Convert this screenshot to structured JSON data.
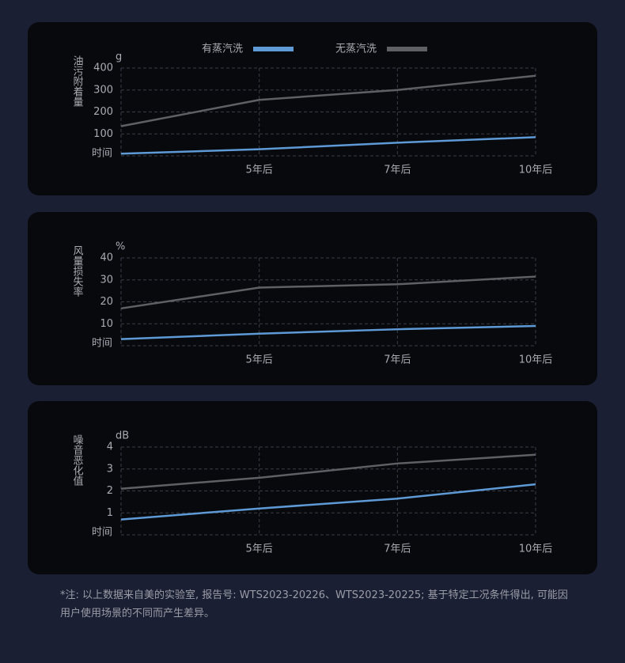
{
  "chart_data": [
    {
      "type": "line",
      "y_label": "油污附着量",
      "y_unit": "g",
      "x_label": "时间",
      "categories": [
        null,
        "5年后",
        "7年后",
        "10年后"
      ],
      "ylim": [
        0,
        400
      ],
      "yticks": [
        100,
        200,
        300,
        400
      ],
      "grid": true,
      "series": [
        {
          "name": "有蒸汽洗",
          "color": "#5e9ad6",
          "values": [
            10,
            30,
            60,
            85
          ]
        },
        {
          "name": "无蒸汽洗",
          "color": "#5f6064",
          "values": [
            135,
            255,
            300,
            365
          ]
        }
      ]
    },
    {
      "type": "line",
      "y_label": "风量损失率",
      "y_unit": "%",
      "x_label": "时间",
      "categories": [
        null,
        "5年后",
        "7年后",
        "10年后"
      ],
      "ylim": [
        0,
        40
      ],
      "yticks": [
        10,
        20,
        30,
        40
      ],
      "grid": true,
      "series": [
        {
          "color": "#5e9ad6",
          "values": [
            3,
            5.5,
            7.5,
            9
          ]
        },
        {
          "color": "#5f6064",
          "values": [
            17,
            26.5,
            28,
            31.5
          ]
        }
      ]
    },
    {
      "type": "line",
      "y_label": "噪音恶化值",
      "y_unit": "dB",
      "x_label": "时间",
      "categories": [
        null,
        "5年后",
        "7年后",
        "10年后"
      ],
      "ylim": [
        0,
        4
      ],
      "yticks": [
        1,
        2,
        3,
        4
      ],
      "grid": true,
      "series": [
        {
          "color": "#5e9ad6",
          "values": [
            0.7,
            1.2,
            1.65,
            2.3
          ]
        },
        {
          "color": "#5f6064",
          "values": [
            2.1,
            2.6,
            3.25,
            3.65
          ]
        }
      ]
    }
  ],
  "footnote": "*注: 以上数据来自美的实验室, 报告号: WTS2023-20226、WTS2023-20225; 基于特定工况条件得出, 可能因用户使用场景的不同而产生差异。"
}
